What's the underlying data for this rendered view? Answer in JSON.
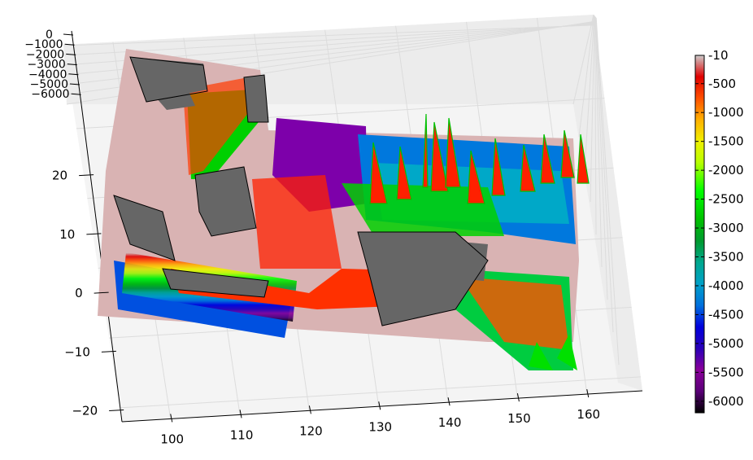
{
  "chart_data": {
    "type": "surface",
    "title": "",
    "xlabel": "",
    "ylabel": "",
    "zlabel": "",
    "x_ticks": [
      "100",
      "110",
      "120",
      "130",
      "140",
      "150",
      "160"
    ],
    "y_ticks": [
      "−20",
      "−10",
      "0",
      "10",
      "20"
    ],
    "z_ticks": [
      "0",
      "−1000",
      "−2000",
      "−3000",
      "−4000",
      "−5000",
      "−6000"
    ],
    "xlim": [
      93,
      168
    ],
    "ylim": [
      -22,
      32
    ],
    "zlim": [
      -6500,
      0
    ],
    "colormap": "nipy_spectral",
    "colorbar": {
      "labels": [
        "-10",
        "-500",
        "-1000",
        "-1500",
        "-2000",
        "-2500",
        "-3000",
        "-3500",
        "-4000",
        "-4500",
        "-5000",
        "-5500",
        "-6000"
      ],
      "vmin": -6200,
      "vmax": -10,
      "stops": [
        [
          "#000000",
          0.0
        ],
        [
          "#5a0078",
          0.06
        ],
        [
          "#8a009a",
          0.12
        ],
        [
          "#2a00b8",
          0.18
        ],
        [
          "#0000dd",
          0.24
        ],
        [
          "#0070dd",
          0.3
        ],
        [
          "#00a0c8",
          0.36
        ],
        [
          "#00a890",
          0.42
        ],
        [
          "#009a30",
          0.48
        ],
        [
          "#00c000",
          0.54
        ],
        [
          "#00ff00",
          0.62
        ],
        [
          "#b8ff00",
          0.7
        ],
        [
          "#f0f000",
          0.76
        ],
        [
          "#ffb000",
          0.82
        ],
        [
          "#ff5000",
          0.88
        ],
        [
          "#e00000",
          0.94
        ],
        [
          "#cccccc",
          1.0
        ]
      ]
    },
    "land_color": "#666666",
    "shallow_color": "#d9b3b3",
    "pane_color": "#f4f4f4"
  }
}
